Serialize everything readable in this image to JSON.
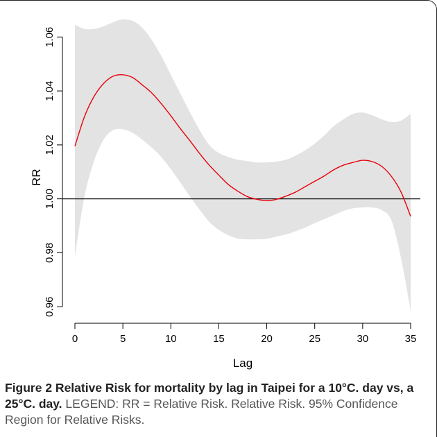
{
  "chart_data": {
    "type": "line",
    "title": "",
    "xlabel": "Lag",
    "ylabel": "RR",
    "xlim": [
      0,
      35
    ],
    "ylim": [
      0.958,
      1.066
    ],
    "xticks": [
      "0",
      "5",
      "10",
      "15",
      "20",
      "25",
      "30",
      "35"
    ],
    "yticks": [
      "0.96",
      "0.98",
      "1.00",
      "1.02",
      "1.04",
      "1.06"
    ],
    "reference_line": 1.0,
    "grid": false,
    "colors": {
      "estimate": "#e8000b",
      "ci_band": "#e3e3e3",
      "reference": "#000000"
    },
    "x": [
      0,
      1,
      2,
      3,
      4,
      5,
      6,
      7,
      8,
      9,
      10,
      11,
      12,
      13,
      14,
      15,
      16,
      17,
      18,
      19,
      20,
      21,
      22,
      23,
      24,
      25,
      26,
      27,
      28,
      29,
      30,
      31,
      32,
      33,
      34,
      35
    ],
    "series": [
      {
        "role": "estimate",
        "values": [
          1.0195,
          1.0305,
          1.038,
          1.0428,
          1.0455,
          1.046,
          1.045,
          1.0423,
          1.0393,
          1.0353,
          1.0308,
          1.026,
          1.0215,
          1.0168,
          1.0125,
          1.0088,
          1.0053,
          1.0028,
          1.0008,
          0.9998,
          0.9993,
          0.9998,
          1.001,
          1.0025,
          1.0045,
          1.0065,
          1.0085,
          1.0108,
          1.0125,
          1.0135,
          1.0143,
          1.0138,
          1.012,
          1.0083,
          1.0025,
          0.9935
        ]
      },
      {
        "role": "ci_upper",
        "values": [
          1.0645,
          1.063,
          1.063,
          1.064,
          1.0655,
          1.0665,
          1.066,
          1.0635,
          1.059,
          1.053,
          1.046,
          1.039,
          1.032,
          1.0255,
          1.02,
          1.017,
          1.0155,
          1.0145,
          1.014,
          1.0135,
          1.0135,
          1.0138,
          1.0145,
          1.016,
          1.018,
          1.0205,
          1.0235,
          1.027,
          1.0295,
          1.0315,
          1.032,
          1.031,
          1.0295,
          1.0285,
          1.029,
          1.0315
        ]
      },
      {
        "role": "ci_lower",
        "values": [
          0.9785,
          1.001,
          1.014,
          1.022,
          1.0255,
          1.0258,
          1.0245,
          1.022,
          1.019,
          1.0155,
          1.011,
          1.006,
          1.0008,
          0.996,
          0.9915,
          0.9885,
          0.9865,
          0.9853,
          0.985,
          0.985,
          0.9852,
          0.986,
          0.9868,
          0.988,
          0.9893,
          0.991,
          0.9925,
          0.994,
          0.9955,
          0.9965,
          0.9968,
          0.9968,
          0.9958,
          0.992,
          0.978,
          0.9585
        ]
      }
    ]
  },
  "caption": {
    "figure_label": "Figure 2 Relative Risk for mortality by lag in Taipei for a 10°C. day vs, a 25°C. day.",
    "legend_text": "LEGEND: RR = Relative Risk. Relative Risk. 95% Confidence Region for Relative Risks."
  }
}
